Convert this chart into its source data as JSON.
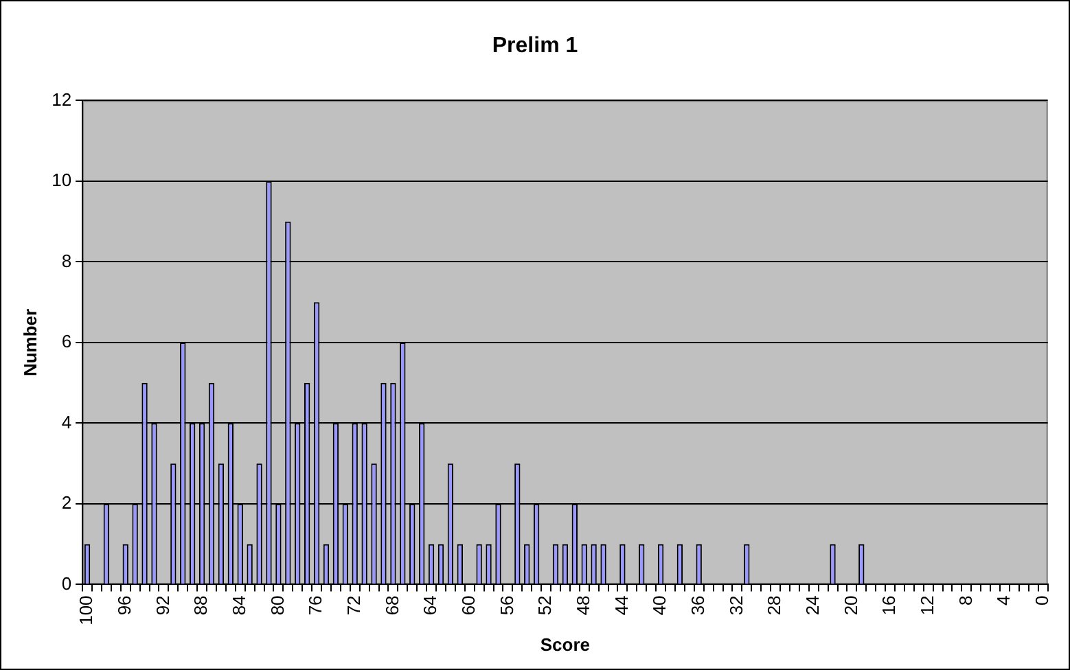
{
  "chart_data": {
    "type": "bar",
    "title": "Prelim 1",
    "xlabel": "Score",
    "ylabel": "Number",
    "categories": [
      "100",
      null,
      null,
      null,
      "96",
      null,
      null,
      null,
      "92",
      null,
      null,
      null,
      "88",
      null,
      null,
      null,
      "84",
      null,
      null,
      null,
      "80",
      null,
      null,
      null,
      "76",
      null,
      null,
      null,
      "72",
      null,
      null,
      null,
      "68",
      null,
      null,
      null,
      "64",
      null,
      null,
      null,
      "60",
      null,
      null,
      null,
      "56",
      null,
      null,
      null,
      "52",
      null,
      null,
      null,
      "48",
      null,
      null,
      null,
      "44",
      null,
      null,
      null,
      "40",
      null,
      null,
      null,
      "36",
      null,
      null,
      null,
      "32",
      null,
      null,
      null,
      "28",
      null,
      null,
      null,
      "24",
      null,
      null,
      null,
      "20",
      null,
      null,
      null,
      "16",
      null,
      null,
      null,
      "12",
      null,
      null,
      null,
      "8",
      null,
      null,
      null,
      "4",
      null,
      null,
      null,
      "0"
    ],
    "values": [
      1,
      0,
      2,
      0,
      1,
      2,
      5,
      4,
      0,
      3,
      6,
      4,
      4,
      5,
      3,
      4,
      2,
      1,
      3,
      10,
      2,
      9,
      4,
      5,
      7,
      1,
      4,
      2,
      4,
      4,
      3,
      5,
      5,
      6,
      2,
      4,
      1,
      1,
      3,
      1,
      0,
      1,
      1,
      2,
      0,
      3,
      1,
      2,
      0,
      1,
      1,
      2,
      1,
      1,
      1,
      0,
      1,
      0,
      1,
      0,
      1,
      0,
      1,
      0,
      1,
      0,
      0,
      0,
      0,
      1,
      0,
      0,
      0,
      0,
      0,
      0,
      0,
      0,
      1,
      0,
      0,
      1,
      0,
      0,
      0,
      0,
      0,
      0,
      0,
      0,
      0,
      0,
      0,
      0,
      0,
      0,
      0,
      0,
      0,
      0,
      0
    ],
    "color": "#9999ff",
    "ylim": [
      0,
      12
    ],
    "yticks": [
      0,
      2,
      4,
      6,
      8,
      10,
      12
    ],
    "grid": "y"
  }
}
